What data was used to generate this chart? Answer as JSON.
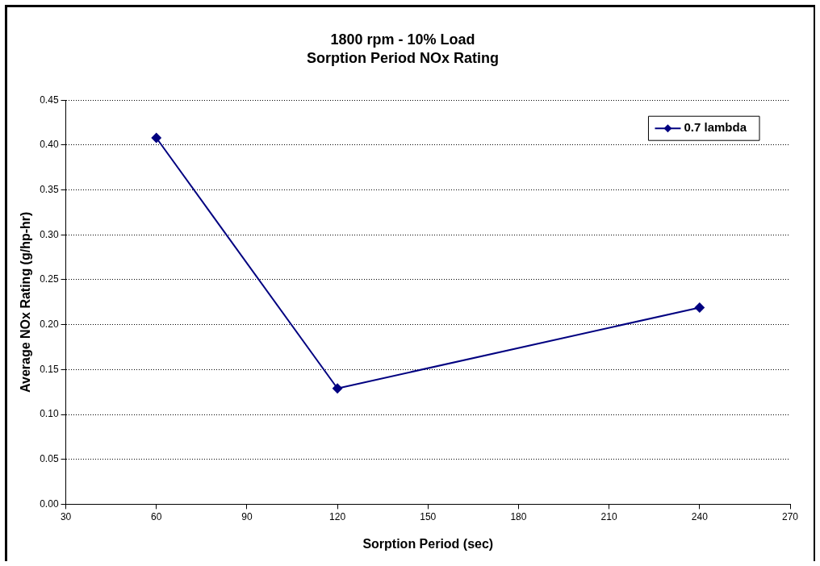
{
  "chart_data": {
    "type": "line",
    "title": "1800 rpm - 10% Load",
    "subtitle": "Sorption Period NOx Rating",
    "xlabel": "Sorption Period (sec)",
    "ylabel": "Average NOx Rating (g/hp-hr)",
    "x": [
      60,
      120,
      240
    ],
    "series": [
      {
        "name": "0.7 lambda",
        "color": "#000080",
        "values": [
          0.408,
          0.129,
          0.219
        ]
      }
    ],
    "xlim": [
      30,
      270
    ],
    "xticks": [
      30,
      60,
      90,
      120,
      150,
      180,
      210,
      240,
      270
    ],
    "ylim": [
      0,
      0.45
    ],
    "yticks": [
      {
        "value": 0,
        "label": "0.00"
      },
      {
        "value": 0.05,
        "label": "0.05"
      },
      {
        "value": 0.1,
        "label": "0.10"
      },
      {
        "value": 0.15,
        "label": "0.15"
      },
      {
        "value": 0.2,
        "label": "0.20"
      },
      {
        "value": 0.25,
        "label": "0.25"
      },
      {
        "value": 0.3,
        "label": "0.30"
      },
      {
        "value": 0.35,
        "label": "0.35"
      },
      {
        "value": 0.4,
        "label": "0.40"
      },
      {
        "value": 0.45,
        "label": "0.45"
      }
    ],
    "grid": "y",
    "legend": "top right",
    "marker": "diamond",
    "line_style": "solid"
  }
}
